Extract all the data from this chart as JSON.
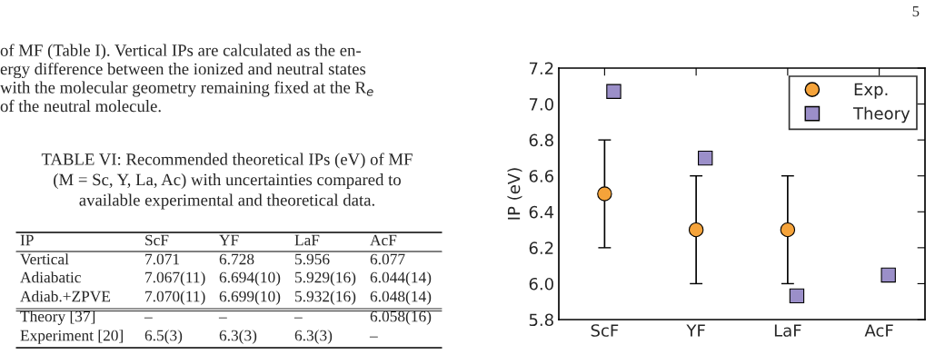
{
  "chart_data": {
    "type": "scatter",
    "categories": [
      "ScF",
      "YF",
      "LaF",
      "AcF"
    ],
    "ylabel": "IP (eV)",
    "ylim": [
      5.8,
      7.2
    ],
    "yticks": [
      {
        "value": 5.8,
        "label": "5.8"
      },
      {
        "value": 6.0,
        "label": "6.0"
      },
      {
        "value": 6.2,
        "label": "6.2"
      },
      {
        "value": 6.4,
        "label": "6.4"
      },
      {
        "value": 6.6,
        "label": "6.6"
      },
      {
        "value": 6.8,
        "label": "6.8"
      },
      {
        "value": 7.0,
        "label": "7.0"
      },
      {
        "value": 7.2,
        "label": "7.2"
      }
    ],
    "series": [
      {
        "name": "Exp.",
        "color": "#f5a33a",
        "marker": "circle",
        "values": [
          6.5,
          6.3,
          6.3,
          null
        ],
        "errors": [
          0.3,
          0.3,
          0.3,
          null
        ]
      },
      {
        "name": "Theory",
        "color": "#9b8fc9",
        "marker": "square",
        "values": [
          7.07,
          6.699,
          5.932,
          6.048
        ]
      }
    ],
    "legend": "top right",
    "grid": false,
    "annotations": [
      "5",
      "of MF (Table I). Vertical IPs are calculated as the en-",
      "ergy difference between the ionized and neutral states",
      "with the molecular geometry remaining fixed at the R$_{e}$",
      "of the neutral molecule.",
      "TABLE VI: Recommended theoretical IPs (eV) of MF",
      "(M = Sc, Y, La, Ac) with uncertainties compared to",
      "available experimental and theoretical data.",
      "IP",
      "ScF",
      "YF",
      "LaF",
      "AcF",
      "Vertical",
      "7.071",
      "6.728",
      "5.956",
      "6.077",
      "Adiabatic",
      "7.067(11)",
      "6.694(10)",
      "5.929(16)",
      "6.044(14)",
      "Adiab.+ZPVE",
      "7.070(11)",
      "6.699(10)",
      "5.932(16)",
      "6.048(14)",
      "Theory [37]",
      "–",
      "–",
      "–",
      "6.058(16)",
      "Experiment [20]",
      "6.5(3)",
      "6.3(3)",
      "6.3(3)",
      "–"
    ]
  }
}
